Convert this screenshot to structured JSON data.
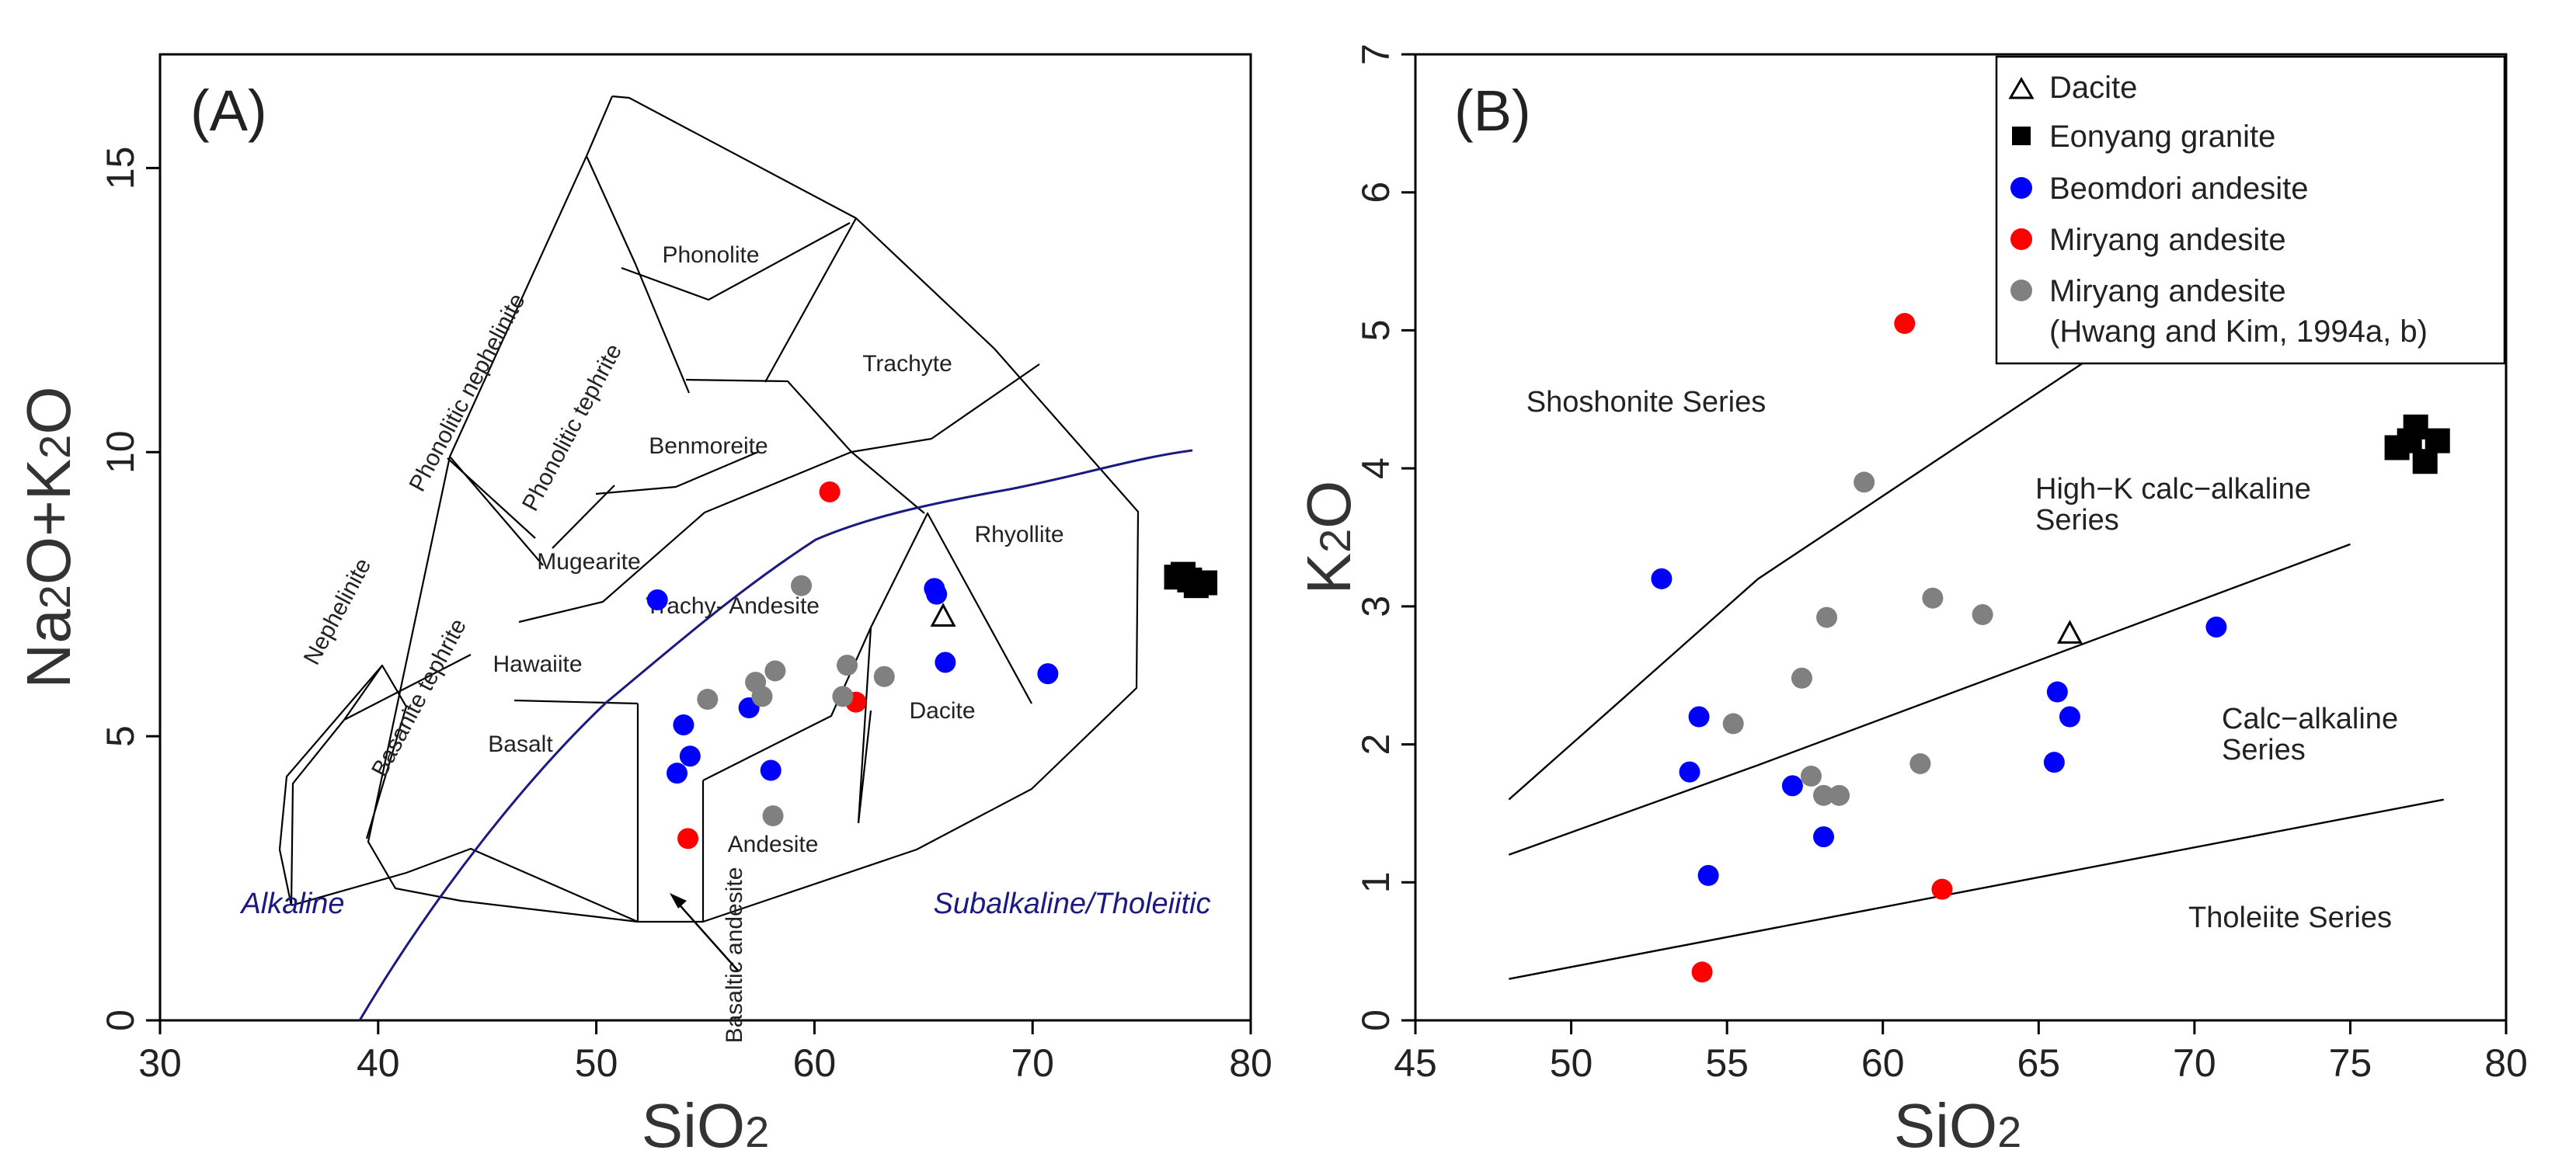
{
  "chart_data": [
    {
      "type": "scatter",
      "panel_label": "(A)",
      "xlabel": "SiO2",
      "ylabel": "Na2O+K2O",
      "xlim": [
        30,
        80
      ],
      "ylim": [
        0,
        17
      ],
      "xticks": [
        30,
        40,
        50,
        60,
        70,
        80
      ],
      "yticks": [
        0,
        5,
        10,
        15
      ],
      "grid": false,
      "series": [
        {
          "name": "Dacite",
          "marker": "open-triangle",
          "color": "#000000",
          "points": [
            [
              65.9,
              7.1
            ]
          ]
        },
        {
          "name": "Eonyang granite",
          "marker": "square",
          "color": "#000000",
          "points": [
            [
              76.6,
              7.8
            ],
            [
              77.2,
              7.75
            ],
            [
              77.5,
              7.65
            ],
            [
              77.9,
              7.7
            ],
            [
              76.9,
              7.85
            ]
          ]
        },
        {
          "name": "Beomdori andesite",
          "marker": "circle",
          "color": "#0000ff",
          "points": [
            [
              52.8,
              7.4
            ],
            [
              65.5,
              7.6
            ],
            [
              65.6,
              7.5
            ],
            [
              66.0,
              6.3
            ],
            [
              70.7,
              6.1
            ],
            [
              57.0,
              5.5
            ],
            [
              54.0,
              5.2
            ],
            [
              54.3,
              4.65
            ],
            [
              53.7,
              4.35
            ],
            [
              58.0,
              4.4
            ]
          ]
        },
        {
          "name": "Miryang andesite",
          "marker": "circle",
          "color": "#ff0000",
          "points": [
            [
              60.7,
              9.3
            ],
            [
              61.9,
              5.6
            ],
            [
              54.2,
              3.2
            ]
          ]
        },
        {
          "name": "Miryang andesite (Hwang and Kim, 1994a, b)",
          "marker": "circle",
          "color": "#808080",
          "points": [
            [
              59.4,
              7.65
            ],
            [
              55.1,
              5.65
            ],
            [
              57.3,
              5.95
            ],
            [
              57.6,
              5.7
            ],
            [
              58.2,
              6.15
            ],
            [
              61.5,
              6.25
            ],
            [
              63.2,
              6.05
            ],
            [
              61.3,
              5.7
            ],
            [
              58.1,
              3.6
            ]
          ]
        }
      ],
      "fields": [
        "Phonolite",
        "Phonolitic nephelinite",
        "Phonolitic tephrite",
        "Trachyte",
        "Benmoreite",
        "Mugearite",
        "Nephelinite",
        "Basanite tephrite",
        "Hawaiite",
        "Basalt",
        "Trachy- Andesite",
        "Rhyollite",
        "Dacite",
        "Andesite",
        "Basaltic andesite"
      ],
      "boundary_labels": [
        "Alkaline",
        "Subalkaline/Tholeiitic"
      ]
    },
    {
      "type": "scatter",
      "panel_label": "(B)",
      "xlabel": "SiO2",
      "ylabel": "K2O",
      "xlim": [
        45,
        80
      ],
      "ylim": [
        0,
        7
      ],
      "xticks": [
        45,
        50,
        55,
        60,
        65,
        70,
        75,
        80
      ],
      "yticks": [
        0,
        1,
        2,
        3,
        4,
        5,
        6,
        7
      ],
      "grid": false,
      "legend_position": "top-right",
      "series": [
        {
          "name": "Dacite",
          "marker": "open-triangle",
          "color": "#000000",
          "points": [
            [
              66.0,
              2.8
            ]
          ]
        },
        {
          "name": "Eonyang granite",
          "marker": "square",
          "color": "#000000",
          "points": [
            [
              76.5,
              4.15
            ],
            [
              77.1,
              4.3
            ],
            [
              77.8,
              4.2
            ],
            [
              77.4,
              4.05
            ],
            [
              76.9,
              4.2
            ]
          ]
        },
        {
          "name": "Beomdori andesite",
          "marker": "circle",
          "color": "#0000ff",
          "points": [
            [
              52.9,
              3.2
            ],
            [
              54.1,
              2.2
            ],
            [
              53.8,
              1.8
            ],
            [
              54.4,
              1.05
            ],
            [
              57.1,
              1.7
            ],
            [
              58.1,
              1.33
            ],
            [
              65.6,
              2.38
            ],
            [
              66.0,
              2.2
            ],
            [
              65.5,
              1.87
            ],
            [
              70.7,
              2.85
            ]
          ]
        },
        {
          "name": "Miryang andesite",
          "marker": "circle",
          "color": "#ff0000",
          "points": [
            [
              60.7,
              5.05
            ],
            [
              61.9,
              0.95
            ],
            [
              54.2,
              0.35
            ]
          ]
        },
        {
          "name": "Miryang andesite (Hwang and Kim, 1994a, b)",
          "marker": "circle",
          "color": "#808080",
          "points": [
            [
              59.4,
              3.9
            ],
            [
              58.2,
              2.92
            ],
            [
              61.6,
              3.06
            ],
            [
              63.2,
              2.94
            ],
            [
              57.4,
              2.48
            ],
            [
              55.2,
              2.15
            ],
            [
              57.7,
              1.77
            ],
            [
              58.1,
              1.63
            ],
            [
              58.6,
              1.63
            ],
            [
              61.2,
              1.86
            ]
          ]
        }
      ],
      "region_labels": [
        "Shoshonite Series",
        "High−K calc−alkaline Series",
        "Calc−alkaline Series",
        "Tholeiite Series"
      ]
    }
  ]
}
